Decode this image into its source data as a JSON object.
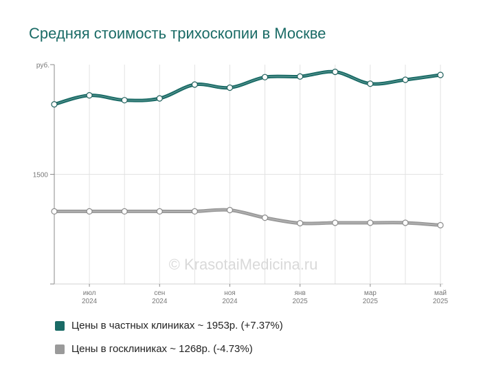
{
  "chart_data": {
    "type": "line",
    "title": "Средняя стоимость трихоскопии в Москве",
    "y_unit_label": "руб.",
    "y_tick_labels": [
      "1500"
    ],
    "ylim": [
      1000,
      2000
    ],
    "watermark": "© KrasotaiMedicina.ru",
    "x_tick_labels": [
      {
        "index": 1,
        "month": "июл",
        "year": "2024"
      },
      {
        "index": 3,
        "month": "сен",
        "year": "2024"
      },
      {
        "index": 5,
        "month": "ноя",
        "year": "2024"
      },
      {
        "index": 7,
        "month": "янв",
        "year": "2025"
      },
      {
        "index": 9,
        "month": "мар",
        "year": "2025"
      },
      {
        "index": 11,
        "month": "май",
        "year": "2025"
      }
    ],
    "x": [
      "2024-06",
      "2024-07",
      "2024-08",
      "2024-09",
      "2024-10",
      "2024-11",
      "2024-12",
      "2025-01",
      "2025-02",
      "2025-03",
      "2025-04",
      "2025-05"
    ],
    "series": [
      {
        "name": "Цены в частных клиниках",
        "legend_label": "Цены в частных клиниках ~ 1953р. (+7.37%)",
        "color": "#1a6b66",
        "values": [
          1819,
          1860,
          1838,
          1846,
          1909,
          1895,
          1943,
          1946,
          1967,
          1913,
          1931,
          1953
        ]
      },
      {
        "name": "Цены в госклиниках",
        "legend_label": "Цены в госклиниках ~ 1268р. (-4.73%)",
        "color": "#9a9a9a",
        "values": [
          1331,
          1331,
          1331,
          1331,
          1331,
          1337,
          1302,
          1277,
          1279,
          1279,
          1279,
          1268
        ]
      }
    ]
  }
}
